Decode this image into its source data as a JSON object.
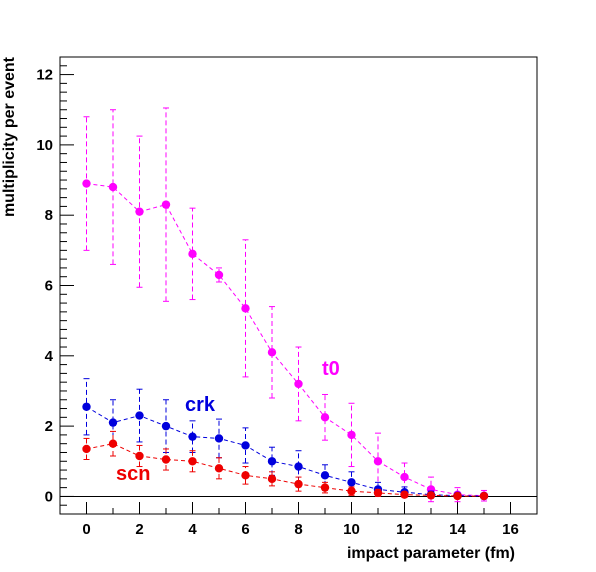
{
  "chart_data": {
    "type": "scatter",
    "xlabel": "impact parameter (fm)",
    "ylabel": "multiplicity per event",
    "xlim": [
      -1,
      17
    ],
    "ylim": [
      -0.5,
      12.5
    ],
    "x_ticks": [
      0,
      2,
      4,
      6,
      8,
      10,
      12,
      14,
      16
    ],
    "y_ticks": [
      0,
      2,
      4,
      6,
      8,
      10,
      12
    ],
    "zero_line": true,
    "grid": false,
    "legend": "none",
    "series": [
      {
        "name": "t0",
        "color": "#ff00ff",
        "x": [
          0,
          1,
          2,
          3,
          4,
          5,
          6,
          7,
          8,
          9,
          10,
          11,
          12,
          13,
          14,
          15
        ],
        "y": [
          8.9,
          8.8,
          8.1,
          8.3,
          6.9,
          6.3,
          5.35,
          4.1,
          3.2,
          2.25,
          1.75,
          1.0,
          0.55,
          0.2,
          0.05,
          0.02
        ],
        "err": [
          1.9,
          2.2,
          2.15,
          2.75,
          1.3,
          0.2,
          1.95,
          1.3,
          1.05,
          0.65,
          0.9,
          0.8,
          0.4,
          0.35,
          0.2,
          0.15
        ]
      },
      {
        "name": "crk",
        "color": "#0000dd",
        "x": [
          0,
          1,
          2,
          3,
          4,
          5,
          6,
          7,
          8,
          9,
          10,
          11,
          12,
          13,
          14,
          15
        ],
        "y": [
          2.55,
          2.1,
          2.3,
          2.0,
          1.7,
          1.65,
          1.45,
          1.0,
          0.85,
          0.6,
          0.4,
          0.2,
          0.12,
          0.05,
          0.02,
          0.01
        ],
        "err": [
          0.8,
          0.65,
          0.75,
          0.75,
          0.45,
          0.55,
          0.5,
          0.4,
          0.45,
          0.3,
          0.3,
          0.2,
          0.15,
          0.1,
          0.08,
          0.08
        ]
      },
      {
        "name": "scn",
        "color": "#ee0000",
        "x": [
          0,
          1,
          2,
          3,
          4,
          5,
          6,
          7,
          8,
          9,
          10,
          11,
          12,
          13,
          14,
          15
        ],
        "y": [
          1.35,
          1.5,
          1.15,
          1.05,
          1.0,
          0.8,
          0.6,
          0.5,
          0.35,
          0.25,
          0.15,
          0.1,
          0.05,
          0.03,
          0.01,
          0.01
        ],
        "err": [
          0.3,
          0.35,
          0.3,
          0.3,
          0.3,
          0.3,
          0.25,
          0.2,
          0.2,
          0.15,
          0.12,
          0.1,
          0.08,
          0.06,
          0.05,
          0.05
        ]
      }
    ]
  }
}
